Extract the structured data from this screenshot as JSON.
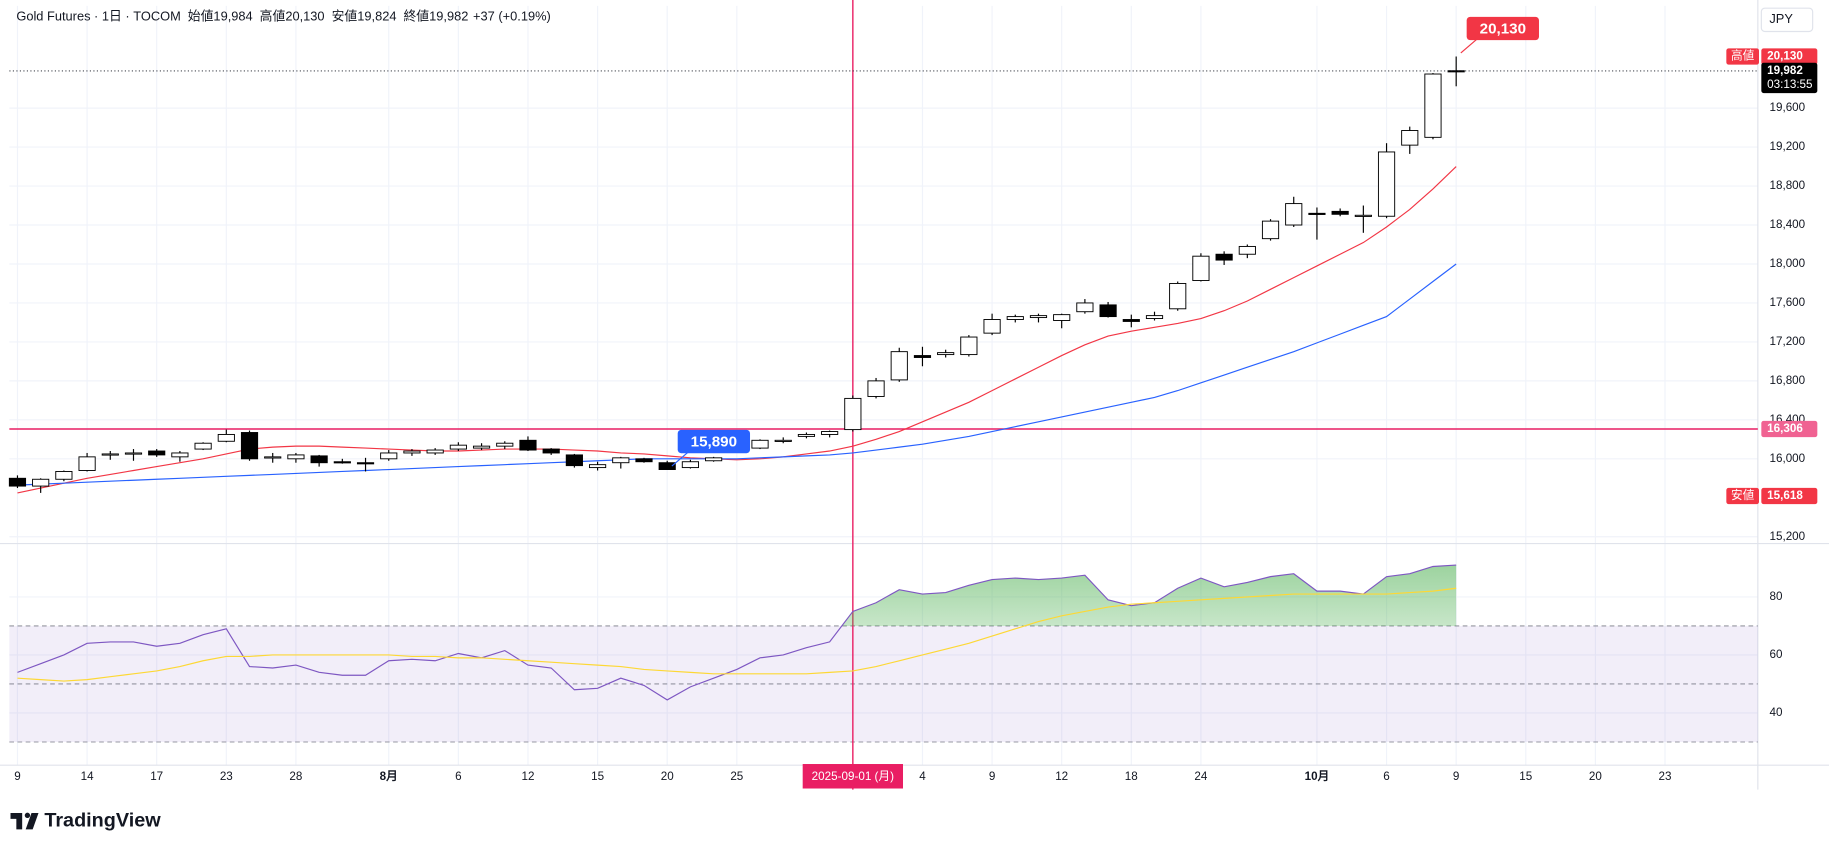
{
  "chart_data": [
    {
      "type": "candlestick",
      "symbol": "Gold Futures · 1日 · TOCOM",
      "ohlc_header": [
        {
          "tag": "始値",
          "value": "19,984"
        },
        {
          "tag": "高値",
          "value": "20,130"
        },
        {
          "tag": "安値",
          "value": "19,824"
        },
        {
          "tag": "終値",
          "value": "19,982"
        }
      ],
      "change": "+37 (+0.19%)",
      "currency": "JPY",
      "up_color": "#ffffff",
      "down_color": "#000000",
      "open": [
        15800,
        15720,
        15790,
        15880,
        16040,
        16050,
        16080,
        16020,
        16100,
        16180,
        16270,
        16010,
        16000,
        16030,
        15970,
        15960,
        16000,
        16060,
        16060,
        16100,
        16110,
        16130,
        16190,
        16100,
        16040,
        15910,
        15960,
        16000,
        15960,
        15910,
        15980,
        16080,
        16110,
        16180,
        16230,
        16250,
        16300,
        16640,
        16810,
        17060,
        17070,
        17070,
        17290,
        17430,
        17450,
        17420,
        17510,
        17580,
        17430,
        17440,
        17540,
        17830,
        18100,
        18100,
        18260,
        18400,
        18520,
        18540,
        18490,
        18490,
        19220,
        19300,
        19984
      ],
      "high": [
        15830,
        15800,
        15880,
        16060,
        16080,
        16100,
        16100,
        16080,
        16170,
        16300,
        16290,
        16060,
        16060,
        16040,
        16000,
        16010,
        16090,
        16100,
        16110,
        16170,
        16160,
        16180,
        16230,
        16110,
        16050,
        15970,
        16020,
        16010,
        15980,
        15990,
        16020,
        16130,
        16200,
        16220,
        16270,
        16290,
        16650,
        16830,
        17140,
        17150,
        17120,
        17270,
        17490,
        17480,
        17490,
        17490,
        17640,
        17610,
        17480,
        17510,
        17820,
        18110,
        18130,
        18200,
        18460,
        18690,
        18580,
        18570,
        18600,
        19240,
        19410,
        19960,
        20130
      ],
      "low": [
        15700,
        15650,
        15770,
        15870,
        15990,
        15980,
        16020,
        15970,
        16090,
        16170,
        15980,
        15960,
        15960,
        15920,
        15950,
        15870,
        15980,
        16030,
        16040,
        16080,
        16090,
        16100,
        16080,
        16040,
        15910,
        15880,
        15900,
        15960,
        15890,
        15900,
        15970,
        16060,
        16100,
        16160,
        16210,
        16220,
        16280,
        16620,
        16790,
        16950,
        17040,
        17050,
        17270,
        17400,
        17400,
        17340,
        17490,
        17450,
        17350,
        17420,
        17520,
        17820,
        17990,
        18060,
        18240,
        18380,
        18250,
        18490,
        18320,
        18470,
        19130,
        19280,
        19824
      ],
      "close": [
        15720,
        15790,
        15870,
        16020,
        16050,
        16060,
        16040,
        16060,
        16160,
        16250,
        16000,
        16020,
        16040,
        15960,
        15960,
        15950,
        16060,
        16080,
        16090,
        16140,
        16130,
        16160,
        16090,
        16060,
        15930,
        15940,
        16010,
        15970,
        15890,
        15970,
        16010,
        16120,
        16190,
        16190,
        16250,
        16280,
        16620,
        16800,
        17100,
        17040,
        17090,
        17250,
        17430,
        17460,
        17470,
        17480,
        17600,
        17460,
        17410,
        17470,
        17800,
        18080,
        18040,
        18180,
        18440,
        18620,
        18510,
        18510,
        18500,
        19150,
        19370,
        19950,
        19982
      ],
      "series": [
        {
          "color": "#f23645",
          "values": [
            15650,
            15700,
            15750,
            15800,
            15840,
            15880,
            15920,
            15960,
            16000,
            16050,
            16100,
            16120,
            16130,
            16130,
            16120,
            16110,
            16100,
            16090,
            16080,
            16080,
            16090,
            16100,
            16100,
            16100,
            16090,
            16080,
            16060,
            16050,
            16030,
            16010,
            16000,
            15990,
            16000,
            16020,
            16050,
            16080,
            16130,
            16200,
            16280,
            16380,
            16480,
            16580,
            16700,
            16820,
            16940,
            17060,
            17170,
            17260,
            17310,
            17350,
            17390,
            17440,
            17520,
            17620,
            17740,
            17860,
            17980,
            18100,
            18220,
            18380,
            18560,
            18770,
            19000
          ]
        },
        {
          "color": "#2962ff",
          "values": [
            15730,
            15740,
            15750,
            15760,
            15770,
            15780,
            15790,
            15800,
            15810,
            15820,
            15830,
            15840,
            15850,
            15860,
            15870,
            15880,
            15890,
            15900,
            15910,
            15920,
            15930,
            15940,
            15950,
            15960,
            15970,
            15980,
            15990,
            16000,
            16000,
            16000,
            16000,
            16000,
            16010,
            16020,
            16030,
            16040,
            16060,
            16090,
            16120,
            16150,
            16190,
            16230,
            16280,
            16330,
            16380,
            16430,
            16480,
            16530,
            16580,
            16630,
            16700,
            16780,
            16860,
            16940,
            17020,
            17100,
            17190,
            17280,
            17370,
            17460,
            17640,
            17820,
            18000
          ]
        }
      ],
      "ylim": [
        15130,
        20650
      ],
      "yticks": [
        {
          "value": 15200,
          "label": "15,200"
        },
        {
          "value": 16000,
          "label": "16,000"
        },
        {
          "value": 16400,
          "label": "16,400"
        },
        {
          "value": 16800,
          "label": "16,800"
        },
        {
          "value": 17200,
          "label": "17,200"
        },
        {
          "value": 17600,
          "label": "17,600"
        },
        {
          "value": 18000,
          "label": "18,000"
        },
        {
          "value": 18400,
          "label": "18,400"
        },
        {
          "value": 18800,
          "label": "18,800"
        },
        {
          "value": 19200,
          "label": "19,200"
        },
        {
          "value": 19600,
          "label": "19,600"
        }
      ],
      "xlim": [
        -0.35,
        75
      ],
      "xticks": [
        {
          "value": 0,
          "label": "9"
        },
        {
          "value": 3,
          "label": "14"
        },
        {
          "value": 6,
          "label": "17"
        },
        {
          "value": 9,
          "label": "23"
        },
        {
          "value": 12,
          "label": "28"
        },
        {
          "value": 16,
          "label": "8月"
        },
        {
          "value": 19,
          "label": "6"
        },
        {
          "value": 22,
          "label": "12"
        },
        {
          "value": 25,
          "label": "15"
        },
        {
          "value": 28,
          "label": "20"
        },
        {
          "value": 31,
          "label": "25"
        },
        {
          "value": 39,
          "label": "4"
        },
        {
          "value": 42,
          "label": "9"
        },
        {
          "value": 45,
          "label": "12"
        },
        {
          "value": 48,
          "label": "18"
        },
        {
          "value": 51,
          "label": "24"
        },
        {
          "value": 56,
          "label": "10月"
        },
        {
          "value": 59,
          "label": "6"
        },
        {
          "value": 62,
          "label": "9"
        },
        {
          "value": 65,
          "label": "15"
        },
        {
          "value": 68,
          "label": "20"
        },
        {
          "value": 71,
          "label": "23"
        }
      ],
      "grid": true,
      "price_labels": [
        {
          "tag": "高値",
          "value": 20130,
          "label": "20,130",
          "color": "#f23645"
        },
        {
          "value": 19982,
          "label": "19,982",
          "sub": "03:13:55",
          "color": "#000000"
        },
        {
          "value": 16306,
          "label": "16,306",
          "color": "#f06292"
        },
        {
          "tag": "安値",
          "value": 15618,
          "label": "15,618",
          "color": "#f23645"
        }
      ],
      "hline": {
        "value": 16306,
        "color": "#e91e63"
      },
      "vline": {
        "index": 36,
        "label": "2025-09-01 (月)",
        "color": "#e91e63"
      },
      "callouts": [
        {
          "index": 62,
          "value": 20130,
          "label": "20,130",
          "color": "#f23645"
        },
        {
          "index": 28,
          "value": 15890,
          "label": "15,890",
          "color": "#2962ff"
        }
      ]
    },
    {
      "type": "line",
      "series": [
        {
          "color": "#7e57c2",
          "values": [
            54,
            57,
            60,
            64,
            64.5,
            64.5,
            63,
            64,
            67,
            69,
            56,
            55.5,
            56.5,
            54,
            53,
            53,
            58,
            58.5,
            58,
            60.5,
            59,
            61.5,
            56.5,
            55.5,
            48,
            48.5,
            52,
            49.5,
            44.5,
            49,
            52,
            55,
            59,
            60,
            62.5,
            64.5,
            75,
            78,
            82.5,
            81,
            81.5,
            84,
            86,
            86.5,
            86,
            86.5,
            87.5,
            79,
            77,
            78,
            83,
            86.5,
            83.5,
            85,
            87,
            88,
            82,
            82,
            81,
            87,
            88,
            90.5,
            91
          ]
        },
        {
          "color": "#fdd835",
          "values": [
            52,
            51.5,
            51,
            51.5,
            52.5,
            53.5,
            54.5,
            56,
            58,
            59.5,
            59.5,
            60,
            60,
            60,
            60,
            60,
            60,
            59.5,
            59.5,
            59,
            59,
            58.5,
            58,
            57.5,
            57,
            56.5,
            56,
            55,
            54.5,
            54,
            53.5,
            53.5,
            53.5,
            53.5,
            53.5,
            54,
            54.5,
            56,
            58,
            60,
            62,
            64,
            66.5,
            69,
            71.5,
            73.5,
            75,
            76.5,
            77.5,
            78,
            78.5,
            79,
            79.5,
            80,
            80.5,
            81,
            81,
            81,
            81,
            81,
            81.5,
            82,
            83
          ]
        }
      ],
      "ylim": [
        22,
        98
      ],
      "yticks": [
        40,
        60,
        80
      ],
      "hlines": [
        70,
        50,
        30
      ],
      "band": [
        30,
        70
      ],
      "fill_color": "#4caf50"
    }
  ],
  "branding": "TradingView"
}
